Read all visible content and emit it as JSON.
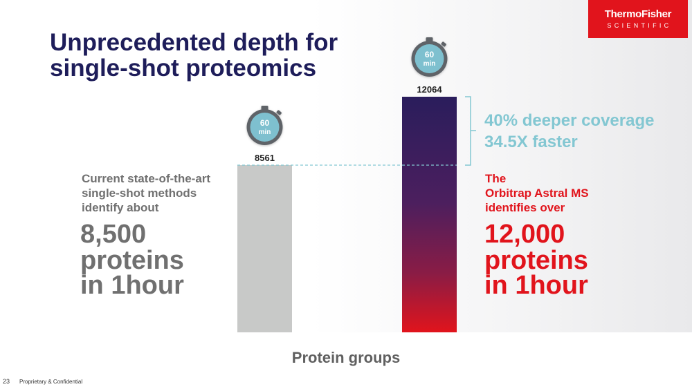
{
  "slide": {
    "title_line1": "Unprecedented depth for",
    "title_line2": "single-shot proteomics",
    "page_number": "23",
    "footer": "Proprietary & Confidential"
  },
  "logo": {
    "line1": "ThermoFisher",
    "line2": "SCIENTIFIC",
    "color": "#e1141c"
  },
  "left_text": {
    "line1": "Current state-of-the-art",
    "line2": "single-shot methods",
    "line3": "identify about",
    "big1": "8,500",
    "big2": "proteins",
    "big3": "in 1hour"
  },
  "right_text": {
    "line1": "The",
    "line2": "Orbitrap Astral MS",
    "line3": "identifies over",
    "big1": "12,000",
    "big2": "proteins",
    "big3": "in 1hour"
  },
  "comparison": {
    "line1": "40% deeper coverage",
    "line2": "34.5X faster"
  },
  "timer": {
    "value": "60",
    "unit": "min",
    "icon": "stopwatch-icon"
  },
  "chart_data": {
    "type": "bar",
    "categories": [
      "",
      ""
    ],
    "values": [
      8561,
      12064
    ],
    "data_labels": [
      "8561",
      "12064"
    ],
    "xlabel": "Protein groups",
    "ylabel": "",
    "ylim": [
      0,
      12064
    ],
    "grid": false,
    "legend": "none",
    "bar_colors": [
      "#c8c9c8",
      "gradient:#2a1d5c-#e1141c"
    ]
  }
}
